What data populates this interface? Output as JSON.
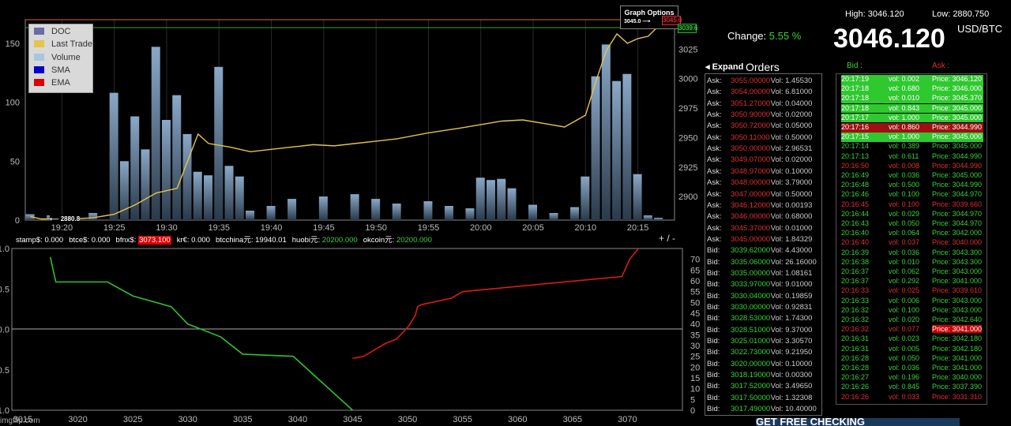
{
  "header": {
    "high_label": "High:",
    "high": "3046.120",
    "low_label": "Low:",
    "low": "2880.750",
    "change_label": "Change:",
    "change": "5.55 %",
    "price": "3046.120",
    "unit": "USD/BTC",
    "expand": "Expand",
    "orders": "Orders",
    "bid": "Bid",
    "ask": "Ask"
  },
  "graph_options": {
    "label": "Graph Options",
    "marker": "3045.0",
    "high_tag": "3045.0",
    "green_tag": "3039.6"
  },
  "low_marker": "2880.8",
  "legend": [
    {
      "label": "DOC",
      "color": "#6b6ba8"
    },
    {
      "label": "Last Trade",
      "color": "#e6c34a"
    },
    {
      "label": "Volume",
      "color": "#a5c8e0"
    },
    {
      "label": "SMA",
      "color": "#0000cc"
    },
    {
      "label": "EMA",
      "color": "#dd0000"
    }
  ],
  "exchanges": [
    {
      "label": "stamp$:",
      "value": "0.000",
      "color": "#ffffff"
    },
    {
      "label": "btce$:",
      "value": "0.000",
      "color": "#ffffff"
    },
    {
      "label": "bfnx$:",
      "value": "3073.100",
      "color": "#ffffff",
      "bg": "#dd0000"
    },
    {
      "label": "kr€:",
      "value": "0.000",
      "color": "#ffffff"
    },
    {
      "label": "btcchina元:",
      "value": "19940.01",
      "color": "#ffffff"
    },
    {
      "label": "huobi元:",
      "value": "20200.000",
      "color": "#3ad23a"
    },
    {
      "label": "okcoin元:",
      "value": "20200.000",
      "color": "#3ad23a"
    }
  ],
  "zoom_controls": "+ / -",
  "chart_data": [
    {
      "type": "line",
      "title": "",
      "x_ticks": [
        "19:20",
        "19:25",
        "19:30",
        "19:35",
        "19:40",
        "19:45",
        "19:50",
        "19:55",
        "20:00",
        "20:05",
        "20:10",
        "20:15"
      ],
      "y_left_ticks": [
        0,
        50,
        100,
        150
      ],
      "y_right_ticks": [
        2900,
        2925,
        2950,
        2975,
        3000,
        3025
      ],
      "series": [
        {
          "name": "Last Trade",
          "x": [
            "19:17",
            "19:18",
            "19:19",
            "19:21",
            "19:23",
            "19:25",
            "19:27",
            "19:29",
            "19:31",
            "19:33",
            "19:34",
            "19:36",
            "19:38",
            "19:40",
            "19:42",
            "19:44",
            "19:46",
            "19:48",
            "19:50",
            "19:52",
            "19:55",
            "19:58",
            "20:00",
            "20:02",
            "20:04",
            "20:06",
            "20:08",
            "20:10",
            "20:11",
            "20:12",
            "20:13",
            "20:14",
            "20:15",
            "20:16",
            "20:17"
          ],
          "values": [
            2883,
            2881,
            2881,
            2881,
            2882,
            2885,
            2893,
            2903,
            2907,
            2953,
            2945,
            2942,
            2938,
            2940,
            2942,
            2944,
            2943,
            2945,
            2947,
            2949,
            2954,
            2958,
            2961,
            2964,
            2965,
            2962,
            2959,
            2969,
            2998,
            3024,
            3038,
            3030,
            3034,
            3036,
            3045
          ]
        },
        {
          "name": "Volume",
          "x": [
            "19:17",
            "19:19",
            "19:21",
            "19:23",
            "19:25",
            "19:26",
            "19:27",
            "19:28",
            "19:29",
            "19:30",
            "19:31",
            "19:32",
            "19:33",
            "19:34",
            "19:35",
            "19:36",
            "19:37",
            "19:38",
            "19:40",
            "19:42",
            "19:45",
            "19:48",
            "19:50",
            "19:52",
            "19:55",
            "19:57",
            "19:59",
            "20:00",
            "20:01",
            "20:02",
            "20:03",
            "20:05",
            "20:07",
            "20:09",
            "20:10",
            "20:11",
            "20:12",
            "20:13",
            "20:14",
            "20:15",
            "20:16",
            "20:17"
          ],
          "values": [
            5,
            4,
            3,
            6,
            108,
            50,
            88,
            60,
            147,
            85,
            106,
            73,
            41,
            38,
            130,
            46,
            37,
            8,
            12,
            18,
            20,
            22,
            18,
            14,
            16,
            12,
            10,
            36,
            34,
            35,
            27,
            13,
            6,
            11,
            37,
            122,
            149,
            118,
            124,
            39,
            4,
            2
          ]
        }
      ]
    },
    {
      "type": "line",
      "title": "",
      "x_ticks": [
        3015,
        3020,
        3025,
        3030,
        3035,
        3040,
        3045,
        3050,
        3055,
        3060,
        3065,
        3070
      ],
      "y_left_ticks": [
        1.0,
        0.5,
        0.0,
        -0.5,
        -1.0
      ],
      "y_right_ticks": [
        0,
        5,
        10,
        15,
        20,
        25,
        30,
        35,
        40,
        45,
        50,
        55,
        60,
        65,
        70
      ],
      "series": [
        {
          "name": "Bid",
          "x": [
            3017.5,
            3018,
            3020,
            3022.7,
            3025,
            3028.5,
            3030,
            3033,
            3035,
            3039.6,
            3045
          ],
          "values": [
            71,
            59.5,
            59.5,
            59.5,
            53,
            48,
            40,
            34,
            26,
            25,
            0
          ]
        },
        {
          "name": "Ask",
          "x": [
            3045,
            3046,
            3047,
            3048,
            3049,
            3050.1,
            3050.7,
            3050.9,
            3051.3,
            3054,
            3055,
            3069.5,
            3070.2,
            3071
          ],
          "values": [
            24,
            25,
            28,
            31,
            33,
            39,
            44,
            48,
            49,
            52,
            55,
            62,
            70,
            75
          ]
        }
      ]
    }
  ],
  "orders": {
    "asks": [
      [
        "3055.00000",
        "1.45530"
      ],
      [
        "3054.00000",
        "6.81000"
      ],
      [
        "3051.27000",
        "0.04000"
      ],
      [
        "3050.90000",
        "0.02000"
      ],
      [
        "3050.72000",
        "0.05000"
      ],
      [
        "3050.11000",
        "0.50000"
      ],
      [
        "3050.00000",
        "2.96531"
      ],
      [
        "3049.07000",
        "0.02000"
      ],
      [
        "3048.97000",
        "0.10000"
      ],
      [
        "3048.00000",
        "3.79000"
      ],
      [
        "3047.00000",
        "0.50000"
      ],
      [
        "3046.12000",
        "0.00193"
      ],
      [
        "3046.00000",
        "0.68000"
      ],
      [
        "3045.37000",
        "0.01000"
      ],
      [
        "3045.00000",
        "1.84329"
      ]
    ],
    "bids": [
      [
        "3039.62000",
        "4.43000"
      ],
      [
        "3035.06000",
        "26.16000"
      ],
      [
        "3035.00000",
        "1.08161"
      ],
      [
        "3033.97000",
        "9.01000"
      ],
      [
        "3030.04000",
        "0.19859"
      ],
      [
        "3030.00000",
        "0.92831"
      ],
      [
        "3028.53000",
        "1.74300"
      ],
      [
        "3028.51000",
        "9.37000"
      ],
      [
        "3025.01000",
        "3.30570"
      ],
      [
        "3022.73000",
        "9.21950"
      ],
      [
        "3020.00000",
        "0.10000"
      ],
      [
        "3018.19000",
        "0.00300"
      ],
      [
        "3017.52000",
        "3.49650"
      ],
      [
        "3017.50000",
        "1.32308"
      ],
      [
        "3017.49000",
        "10.40000"
      ]
    ],
    "ask_label": "Ask:",
    "bid_label": "Bid:",
    "vol_label": "Vol:"
  },
  "trades": [
    [
      "20:17:19",
      "0.002",
      "3046.120",
      "up"
    ],
    [
      "20:17:18",
      "0.680",
      "3046.000",
      "up"
    ],
    [
      "20:17:18",
      "0.010",
      "3045.370",
      "up"
    ],
    [
      "20:17:18",
      "0.843",
      "3045.000",
      "up"
    ],
    [
      "20:17:17",
      "1.000",
      "3045.000",
      "up"
    ],
    [
      "20:17:16",
      "0.860",
      "3044.990",
      "down"
    ],
    [
      "20:17:15",
      "1.000",
      "3045.000",
      "up"
    ],
    [
      "20:17:14",
      "0.389",
      "3045.000",
      "flat"
    ],
    [
      "20:17:13",
      "0.611",
      "3044.990",
      "flat"
    ],
    [
      "20:16:50",
      "0.008",
      "3044.990",
      "red"
    ],
    [
      "20:16:49",
      "0.036",
      "3045.000",
      "flat"
    ],
    [
      "20:16:48",
      "0.500",
      "3044.990",
      "flat"
    ],
    [
      "20:16:46",
      "0.100",
      "3044.970",
      "flat"
    ],
    [
      "20:16:45",
      "0.100",
      "3039.660",
      "red"
    ],
    [
      "20:16:44",
      "0.029",
      "3044.970",
      "flat"
    ],
    [
      "20:16:43",
      "0.050",
      "3044.970",
      "flat"
    ],
    [
      "20:16:40",
      "0.064",
      "3042.000",
      "flat"
    ],
    [
      "20:16:40",
      "0.037",
      "3040.000",
      "red"
    ],
    [
      "20:16:39",
      "0.036",
      "3043.300",
      "flat"
    ],
    [
      "20:16:38",
      "0.010",
      "3043.300",
      "flat"
    ],
    [
      "20:16:37",
      "0.062",
      "3043.000",
      "flat"
    ],
    [
      "20:16:37",
      "0.292",
      "3041.000",
      "flat"
    ],
    [
      "20:16:33",
      "0.025",
      "3039.610",
      "red"
    ],
    [
      "20:16:33",
      "0.006",
      "3043.000",
      "flat"
    ],
    [
      "20:16:32",
      "0.100",
      "3043.000",
      "flat"
    ],
    [
      "20:16:32",
      "0.020",
      "3042.640",
      "flat"
    ],
    [
      "20:16:32",
      "0.077",
      "3041.000",
      "redhl"
    ],
    [
      "20:16:31",
      "0.023",
      "3042.180",
      "flat"
    ],
    [
      "20:16:31",
      "0.005",
      "3042.180",
      "flat"
    ],
    [
      "20:16:28",
      "0.050",
      "3041.000",
      "flat"
    ],
    [
      "20:16:28",
      "0.036",
      "3041.000",
      "flat"
    ],
    [
      "20:16:27",
      "0.196",
      "3040.000",
      "flat"
    ],
    [
      "20:16:26",
      "0.845",
      "3037.390",
      "flat"
    ],
    [
      "20:16:26",
      "0.033",
      "3031.310",
      "red"
    ]
  ],
  "trade_labels": {
    "vol": "vol:",
    "price": "Price:"
  },
  "footer": {
    "credit": "imgflip.com",
    "banner": "GET FREE CHECKING"
  },
  "colors": {
    "bid": "#3ad23a",
    "ask": "#e03030",
    "price_line": "#e6c34a"
  }
}
